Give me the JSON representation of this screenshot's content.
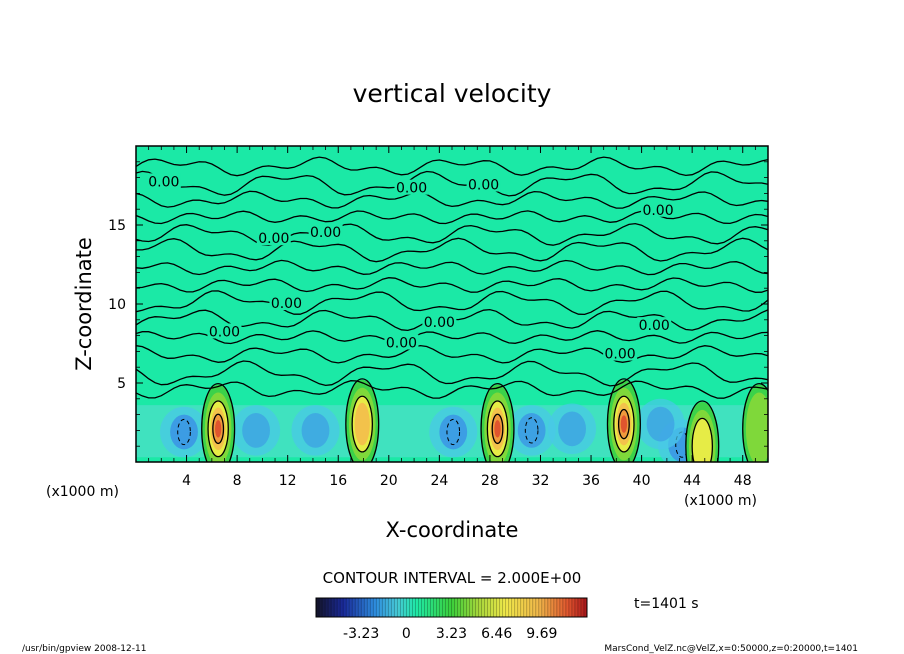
{
  "chart_data": {
    "type": "heatmap",
    "title": "vertical velocity",
    "xlabel": "X-coordinate",
    "ylabel": "Z-coordinate",
    "x_unit": "(x1000 m)",
    "xlim": [
      0,
      50
    ],
    "ylim": [
      0,
      20
    ],
    "x_ticks": [
      4,
      8,
      12,
      16,
      20,
      24,
      28,
      32,
      36,
      40,
      44,
      48
    ],
    "y_ticks": [
      5,
      10,
      15
    ],
    "contour_interval_text": "CONTOUR INTERVAL = 2.000E+00",
    "time_text": "t=1401 s",
    "colorbar": {
      "min": -6.46,
      "max": 12.92,
      "tick_labels": [
        "-3.23",
        "0",
        "3.23",
        "6.46",
        "9.69"
      ],
      "tick_values": [
        -3.23,
        0,
        3.23,
        6.46,
        9.69
      ]
    },
    "contour_labels": [
      {
        "x": 2.2,
        "z": 17.7,
        "text": "0.00"
      },
      {
        "x": 21.8,
        "z": 17.3,
        "text": "0.00"
      },
      {
        "x": 27.5,
        "z": 17.5,
        "text": "0.00"
      },
      {
        "x": 41.3,
        "z": 15.9,
        "text": "0.00"
      },
      {
        "x": 10.9,
        "z": 14.1,
        "text": "0.00"
      },
      {
        "x": 15.0,
        "z": 14.5,
        "text": "0.00"
      },
      {
        "x": 11.9,
        "z": 10.0,
        "text": "0.00"
      },
      {
        "x": 7.0,
        "z": 8.2,
        "text": "0.00"
      },
      {
        "x": 24.0,
        "z": 8.8,
        "text": "0.00"
      },
      {
        "x": 41.0,
        "z": 8.6,
        "text": "0.00"
      },
      {
        "x": 21.0,
        "z": 7.5,
        "text": "0.00"
      },
      {
        "x": 38.3,
        "z": 6.8,
        "text": "0.00"
      }
    ],
    "updrafts": [
      {
        "x": 6.5,
        "z": 2.1,
        "peak": 10.5
      },
      {
        "x": 17.9,
        "z": 2.4,
        "peak": 6.5
      },
      {
        "x": 28.6,
        "z": 2.1,
        "peak": 11.0
      },
      {
        "x": 38.6,
        "z": 2.4,
        "peak": 10.0
      },
      {
        "x": 44.8,
        "z": 1.0,
        "peak": 4.5
      },
      {
        "x": 49.3,
        "z": 2.1,
        "peak": 3.8
      }
    ],
    "downdrafts": [
      {
        "x": 3.8,
        "z": 1.9,
        "min": -3.5
      },
      {
        "x": 25.1,
        "z": 1.9,
        "min": -3.3
      },
      {
        "x": 31.3,
        "z": 2.0,
        "min": -3.0
      },
      {
        "x": 43.2,
        "z": 1.1,
        "min": -3.4
      },
      {
        "x": 9.5,
        "z": 2.0,
        "min": -2.0
      },
      {
        "x": 14.2,
        "z": 2.0,
        "min": -2.0
      },
      {
        "x": 34.5,
        "z": 2.1,
        "min": -2.0
      },
      {
        "x": 41.5,
        "z": 2.4,
        "min": -2.0
      }
    ]
  },
  "footer": {
    "left": "/usr/bin/gpview   2008-12-11",
    "right": "MarsCond_VelZ.nc@VelZ,x=0:50000,z=0:20000,t=1401"
  }
}
